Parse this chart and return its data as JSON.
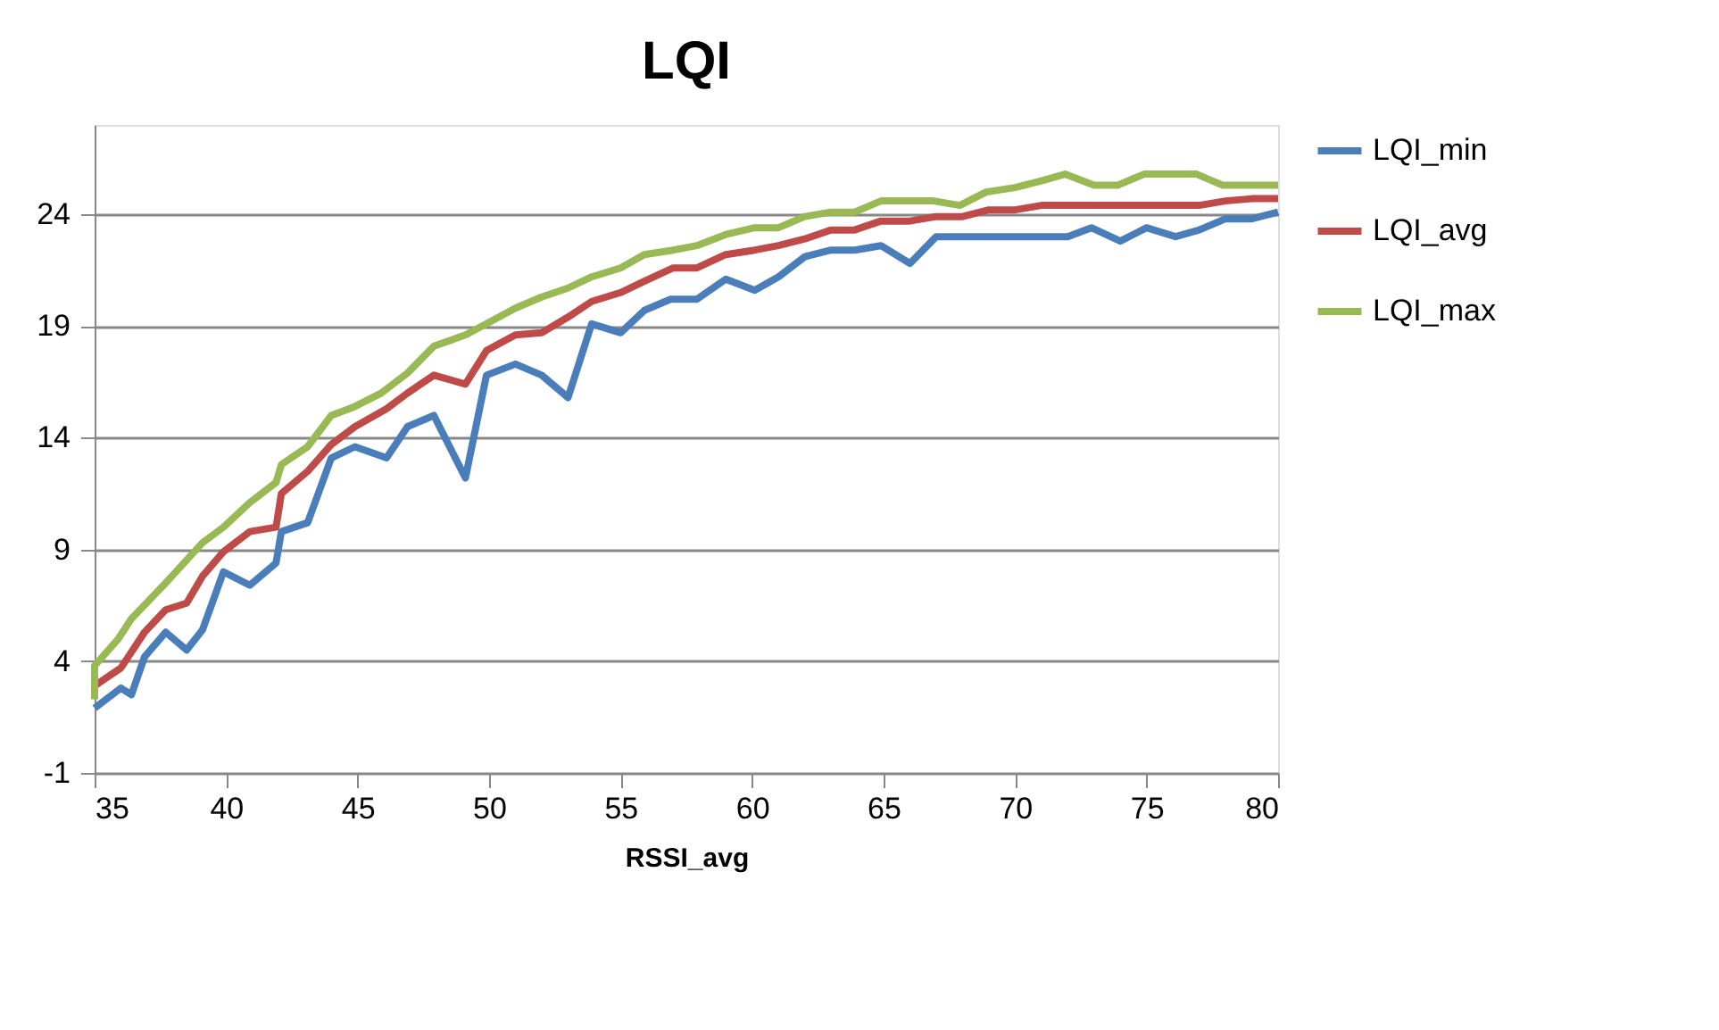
{
  "chart_data": {
    "type": "line",
    "title": "LQI",
    "xlabel": "RSSI_avg",
    "xlim": [
      35,
      80
    ],
    "xticks": [
      35,
      40,
      45,
      50,
      55,
      60,
      65,
      70,
      75,
      80
    ],
    "ylim": [
      -1,
      28
    ],
    "yticks": [
      -1,
      4,
      9,
      14,
      19,
      24
    ],
    "grid": "y",
    "legend": "right",
    "marker": "none",
    "line_style": "solid",
    "series": [
      {
        "name": "LQI_min",
        "color": "#4a7ebb",
        "x": [
          35,
          36,
          36.4,
          36.9,
          37.7,
          38.5,
          39.1,
          39.9,
          40.9,
          41.9,
          42.1,
          43.1,
          44,
          44.9,
          46.1,
          46.9,
          47.9,
          49.1,
          49.9,
          51,
          52,
          53,
          53.9,
          55,
          55.9,
          56.9,
          57.9,
          59,
          60.1,
          61,
          62,
          63,
          63.9,
          64.9,
          66,
          67,
          72,
          72.9,
          74,
          75,
          76.1,
          77,
          78,
          79,
          80
        ],
        "values": [
          1.9,
          2.8,
          2.5,
          4.2,
          5.3,
          4.5,
          5.4,
          8.0,
          7.4,
          8.4,
          9.8,
          10.2,
          13.1,
          13.6,
          13.1,
          14.5,
          15.0,
          12.2,
          16.8,
          17.3,
          16.8,
          15.8,
          19.1,
          18.7,
          19.7,
          20.2,
          20.2,
          21.1,
          20.6,
          21.2,
          22.1,
          22.4,
          22.4,
          22.6,
          21.8,
          23.0,
          23.0,
          23.4,
          22.8,
          23.4,
          23.0,
          23.3,
          23.8,
          23.8,
          24.1
        ]
      },
      {
        "name": "LQI_avg",
        "color": "#be4b48",
        "x": [
          35,
          36,
          36.9,
          37.7,
          38.5,
          39.1,
          39.9,
          40.9,
          41.9,
          42.1,
          43.1,
          44,
          44.9,
          46.1,
          46.9,
          47.9,
          49.1,
          49.9,
          51,
          52,
          53,
          53.9,
          55,
          55.9,
          57,
          57.9,
          59,
          60.1,
          61,
          62,
          63,
          63.9,
          64.9,
          66,
          67,
          68,
          69,
          70,
          71,
          77,
          78,
          79,
          80
        ],
        "values": [
          2.9,
          3.7,
          5.3,
          6.3,
          6.6,
          7.8,
          8.9,
          9.8,
          10.0,
          11.5,
          12.5,
          13.7,
          14.5,
          15.3,
          16.0,
          16.8,
          16.4,
          17.9,
          18.6,
          18.7,
          19.4,
          20.1,
          20.5,
          21.0,
          21.6,
          21.6,
          22.2,
          22.4,
          22.6,
          22.9,
          23.3,
          23.3,
          23.7,
          23.7,
          23.9,
          23.9,
          24.2,
          24.2,
          24.4,
          24.4,
          24.6,
          24.7,
          24.7
        ]
      },
      {
        "name": "LQI_max",
        "color": "#98b954",
        "x": [
          35,
          35,
          35.9,
          36.4,
          37.7,
          39.1,
          39.9,
          40.9,
          41.9,
          42.1,
          43.1,
          44,
          44.9,
          45.9,
          46.9,
          47.9,
          49.1,
          49.9,
          51,
          52,
          53,
          53.9,
          55,
          55.9,
          57,
          57.9,
          59,
          60.1,
          61,
          62,
          63,
          63.9,
          64.9,
          66.9,
          67.9,
          68.9,
          70,
          71,
          71.9,
          73,
          73.9,
          74.9,
          76.9,
          77.9,
          80
        ],
        "values": [
          2.3,
          3.8,
          5.0,
          5.9,
          7.5,
          9.3,
          10.0,
          11.1,
          12.0,
          12.8,
          13.6,
          15.0,
          15.4,
          16.0,
          16.9,
          18.1,
          18.6,
          19.1,
          19.8,
          20.3,
          20.7,
          21.2,
          21.6,
          22.2,
          22.4,
          22.6,
          23.1,
          23.4,
          23.4,
          23.9,
          24.1,
          24.1,
          24.6,
          24.6,
          24.4,
          25.0,
          25.2,
          25.5,
          25.8,
          25.3,
          25.3,
          25.8,
          25.8,
          25.3,
          25.3
        ]
      }
    ]
  }
}
